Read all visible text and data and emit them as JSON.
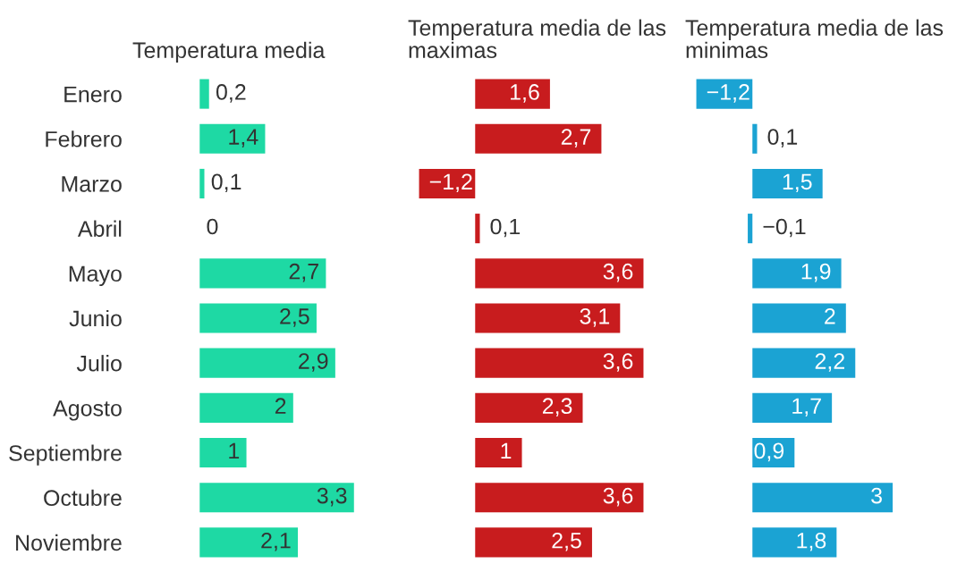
{
  "chart_data": [
    {
      "type": "bar",
      "orientation": "horizontal",
      "title": "Temperatura media",
      "categories": [
        "Enero",
        "Febrero",
        "Marzo",
        "Abril",
        "Mayo",
        "Junio",
        "Julio",
        "Agosto",
        "Septiembre",
        "Octubre",
        "Noviembre"
      ],
      "color": "#1ed9a4",
      "values": [
        0.2,
        1.4,
        0.1,
        0,
        2.7,
        2.5,
        2.9,
        2,
        1,
        3.3,
        2.1
      ],
      "value_labels": [
        "0,2",
        "1,4",
        "0,1",
        "0",
        "2,7",
        "2,5",
        "2,9",
        "2",
        "1",
        "3,3",
        "2,1"
      ],
      "tick_labels": "y"
    },
    {
      "type": "bar",
      "orientation": "horizontal",
      "title": "Temperatura media de las maximas",
      "color": "#c81c1e",
      "values": [
        1.6,
        2.7,
        -1.2,
        0.1,
        3.6,
        3.1,
        3.6,
        2.3,
        1,
        3.6,
        2.5
      ],
      "value_labels": [
        "1,6",
        "2,7",
        "−1,2",
        "0,1",
        "3,6",
        "3,1",
        "3,6",
        "2,3",
        "1",
        "3,6",
        "2,5"
      ],
      "tick_labels": false
    },
    {
      "type": "bar",
      "orientation": "horizontal",
      "title": "Temperatura media de las minimas",
      "color": "#1ba3d3",
      "values": [
        -1.2,
        0.1,
        1.5,
        -0.1,
        1.9,
        2,
        2.2,
        1.7,
        0.9,
        3,
        1.8
      ],
      "value_labels": [
        "−1,2",
        "0,1",
        "1,5",
        "−0,1",
        "1,9",
        "2",
        "2,2",
        "1,7",
        "0,9",
        "3",
        "1,8"
      ],
      "tick_labels": false
    }
  ]
}
